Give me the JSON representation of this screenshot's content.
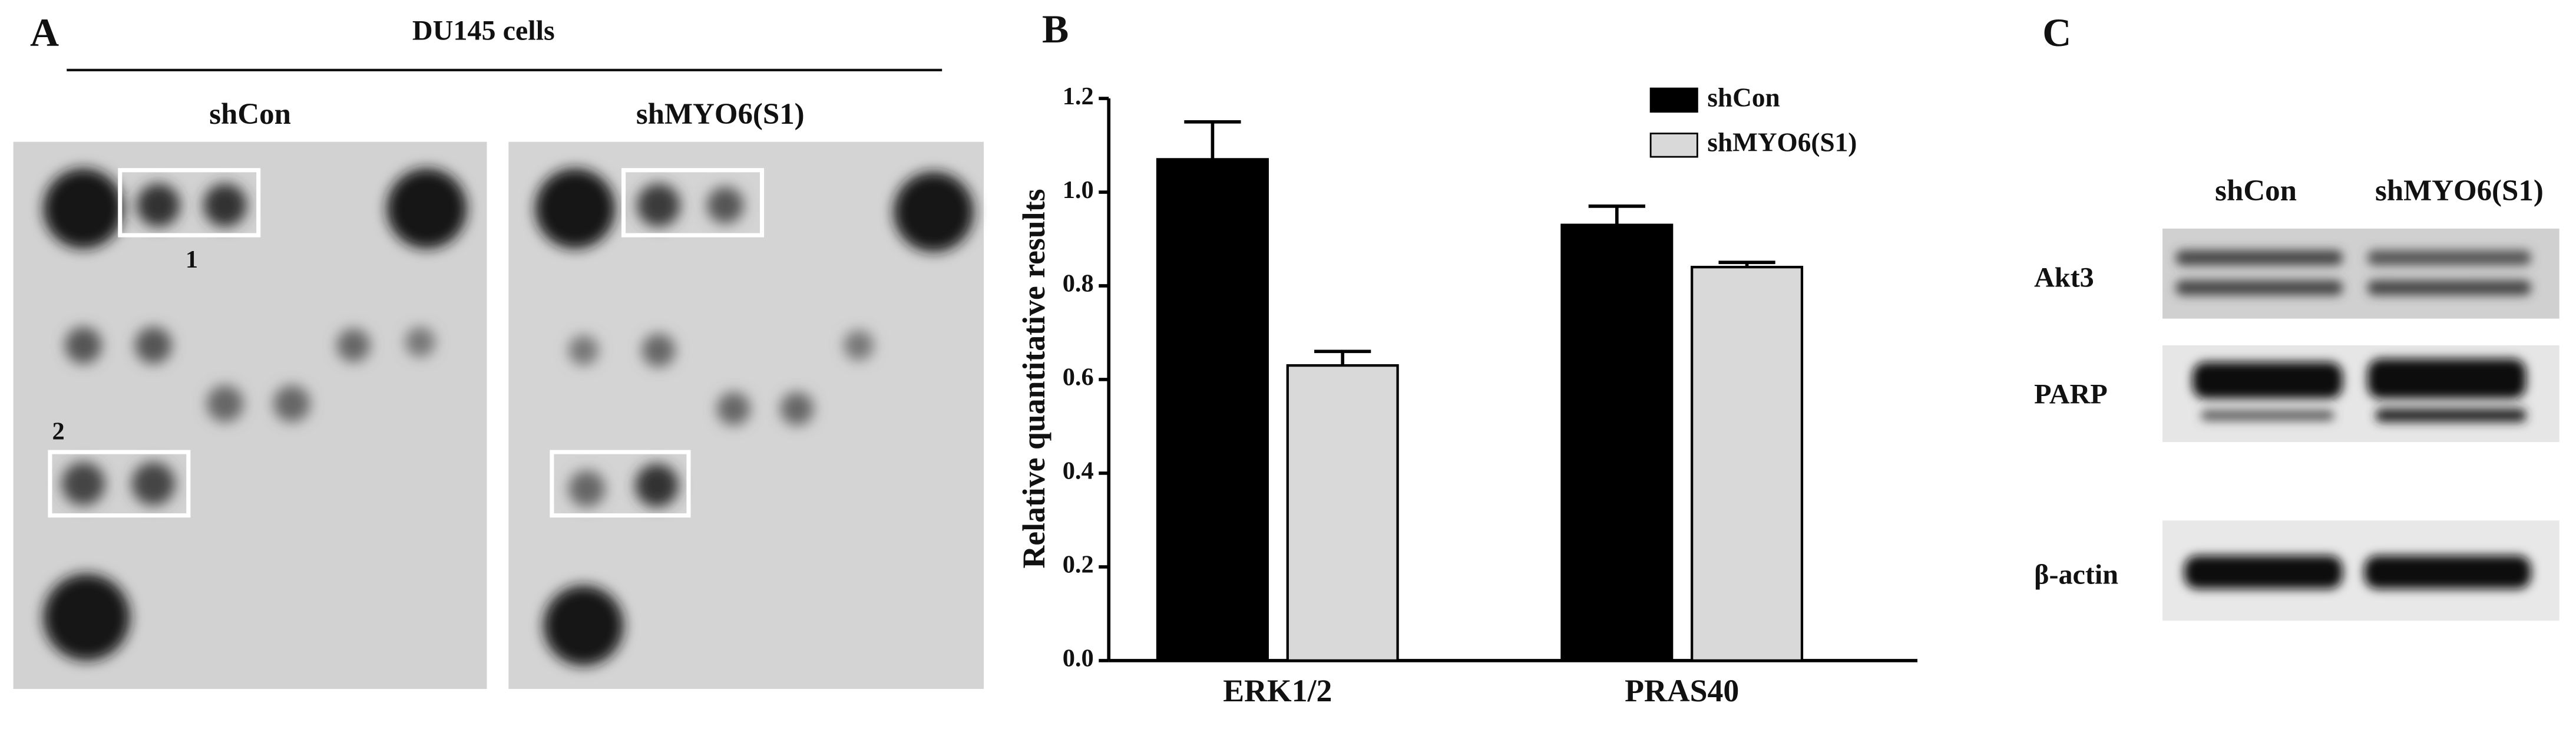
{
  "panel_a": {
    "label": "A",
    "title": "DU145 cells",
    "columns": [
      "shCon",
      "shMYO6(S1)"
    ],
    "box_labels": [
      "1",
      "2"
    ]
  },
  "chart_data": {
    "type": "bar",
    "label": "B",
    "ylabel": "Relative quantitative results",
    "categories": [
      "ERK1/2",
      "PRAS40"
    ],
    "series": [
      {
        "name": "shCon",
        "color": "#000000",
        "values": [
          1.07,
          0.93
        ],
        "errors": [
          0.08,
          0.04
        ]
      },
      {
        "name": "shMYO6(S1)",
        "color": "#d9d9d9",
        "values": [
          0.63,
          0.84
        ],
        "errors": [
          0.03,
          0.01
        ]
      }
    ],
    "ylim": [
      0,
      1.2
    ],
    "yticks": [
      {
        "value": 0,
        "label": "0.0"
      },
      0.2,
      0.4,
      0.6,
      0.8,
      {
        "value": 1,
        "label": "1.0"
      },
      1.2
    ],
    "legend": "upper right"
  },
  "panel_c": {
    "label": "C",
    "columns": [
      "shCon",
      "shMYO6(S1)"
    ],
    "rows": [
      "Akt3",
      "PARP",
      "β-actin"
    ]
  }
}
